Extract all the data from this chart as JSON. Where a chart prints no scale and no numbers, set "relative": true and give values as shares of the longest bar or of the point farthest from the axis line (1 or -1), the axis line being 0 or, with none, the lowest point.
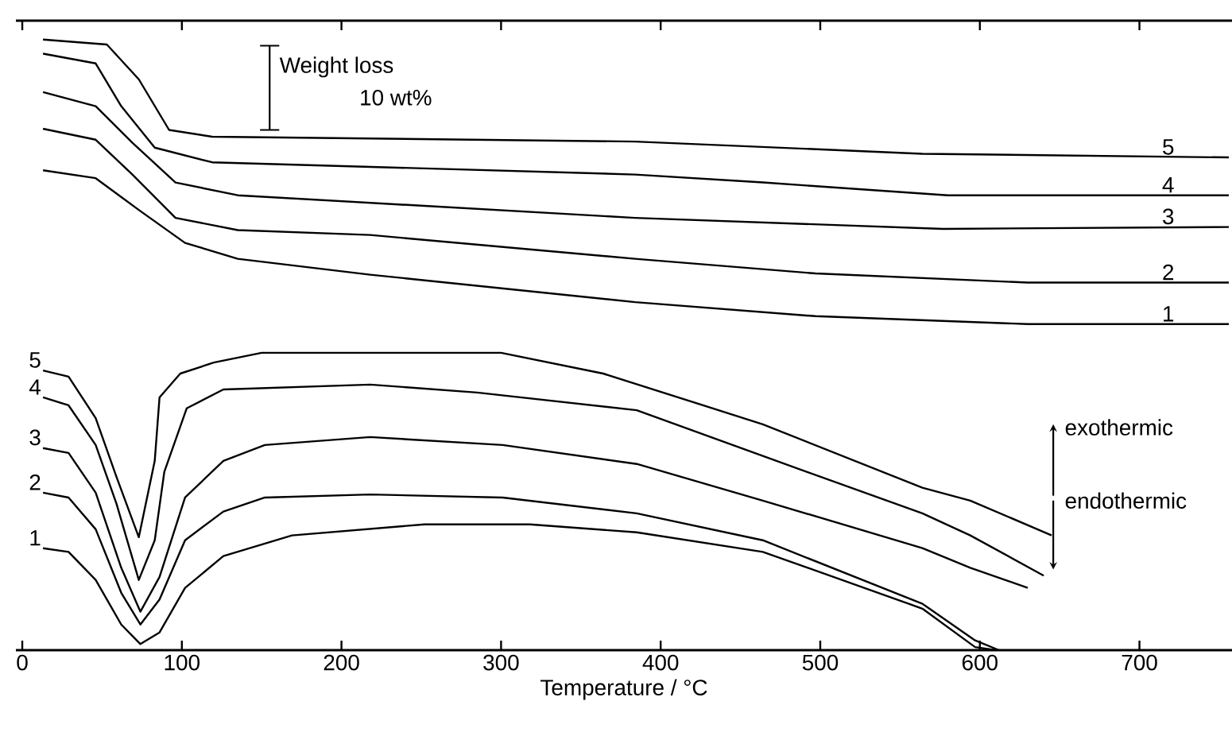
{
  "chart_data": {
    "type": "line",
    "relative": true,
    "xlabel": "Temperature / °C",
    "xlim": [
      -4,
      758
    ],
    "xticks": [
      0,
      100,
      200,
      300,
      400,
      500,
      600,
      700
    ],
    "grid": false,
    "marker": "none",
    "line_style": "solid",
    "tick_labels": "x",
    "annotations": [
      "Weight loss",
      "10 wt%",
      "exothermic",
      "endothermic"
    ],
    "series": [
      {
        "name": "5",
        "color": "#000000",
        "x": [
          13,
          53,
          73,
          92,
          119,
          384,
          564,
          756
        ],
        "values": [
          1.0,
          0.992,
          0.935,
          0.852,
          0.841,
          0.833,
          0.813,
          0.807
        ]
      },
      {
        "name": "4",
        "color": "#000000",
        "x": [
          13,
          46,
          62,
          83,
          119,
          384,
          464,
          580,
          756
        ],
        "values": [
          0.977,
          0.961,
          0.891,
          0.823,
          0.799,
          0.779,
          0.766,
          0.745,
          0.745
        ]
      },
      {
        "name": "3",
        "color": "#000000",
        "x": [
          13,
          46,
          69,
          96,
          135,
          384,
          577,
          756
        ],
        "values": [
          0.914,
          0.891,
          0.831,
          0.766,
          0.745,
          0.708,
          0.69,
          0.693
        ]
      },
      {
        "name": "2",
        "color": "#000000",
        "x": [
          13,
          46,
          69,
          96,
          135,
          218,
          384,
          497,
          630,
          756
        ],
        "values": [
          0.854,
          0.836,
          0.779,
          0.708,
          0.688,
          0.68,
          0.641,
          0.617,
          0.602,
          0.602
        ]
      },
      {
        "name": "1",
        "color": "#000000",
        "x": [
          13,
          46,
          73,
          102,
          135,
          218,
          384,
          497,
          630,
          756
        ],
        "values": [
          0.786,
          0.773,
          0.721,
          0.667,
          0.641,
          0.615,
          0.57,
          0.547,
          0.534,
          0.534
        ]
      },
      {
        "name": "5",
        "color": "#000000",
        "x": [
          13,
          29,
          46,
          59,
          73,
          83,
          86,
          99,
          120,
          150,
          300,
          364,
          464,
          564,
          594,
          645
        ],
        "values": [
          0.458,
          0.448,
          0.38,
          0.284,
          0.185,
          0.31,
          0.414,
          0.453,
          0.471,
          0.487,
          0.487,
          0.453,
          0.37,
          0.266,
          0.245,
          0.188
        ]
      },
      {
        "name": "4",
        "color": "#000000",
        "x": [
          13,
          29,
          46,
          59,
          73,
          83,
          89,
          103,
          126,
          218,
          285,
          385,
          464,
          564,
          594,
          640
        ],
        "values": [
          0.414,
          0.401,
          0.336,
          0.24,
          0.115,
          0.18,
          0.292,
          0.396,
          0.427,
          0.435,
          0.422,
          0.393,
          0.318,
          0.224,
          0.188,
          0.122
        ]
      },
      {
        "name": "3",
        "color": "#000000",
        "x": [
          13,
          29,
          46,
          62,
          74,
          86,
          102,
          126,
          152,
          218,
          301,
          385,
          464,
          564,
          594,
          630
        ],
        "values": [
          0.331,
          0.323,
          0.258,
          0.135,
          0.063,
          0.12,
          0.25,
          0.31,
          0.336,
          0.349,
          0.336,
          0.305,
          0.245,
          0.167,
          0.135,
          0.102
        ]
      },
      {
        "name": "2",
        "color": "#000000",
        "x": [
          13,
          29,
          46,
          62,
          74,
          86,
          102,
          126,
          152,
          218,
          301,
          385,
          464,
          564,
          597,
          612
        ],
        "values": [
          0.258,
          0.25,
          0.198,
          0.094,
          0.042,
          0.083,
          0.18,
          0.227,
          0.25,
          0.255,
          0.25,
          0.224,
          0.18,
          0.076,
          0.016,
          0
        ]
      },
      {
        "name": "1",
        "color": "#000000",
        "x": [
          13,
          29,
          46,
          62,
          74,
          86,
          102,
          126,
          169,
          252,
          318,
          385,
          464,
          564,
          597,
          610
        ],
        "values": [
          0.167,
          0.161,
          0.115,
          0.042,
          0.01,
          0.029,
          0.102,
          0.154,
          0.188,
          0.206,
          0.206,
          0.193,
          0.161,
          0.068,
          0.005,
          0
        ]
      }
    ]
  }
}
